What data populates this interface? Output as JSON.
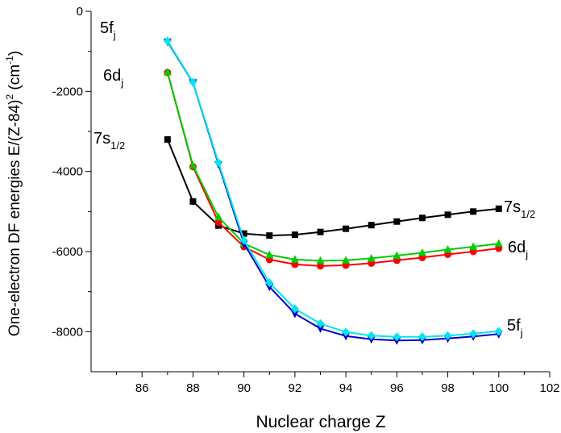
{
  "chart_data": {
    "type": "line",
    "xlabel": "Nuclear charge Z",
    "ylabel": {
      "main": "One-electron DF energies E/(Z-84)",
      "exp2": "2",
      "unit_open": " (cm",
      "unit_exp": "-1",
      "unit_close": ")"
    },
    "xlim": [
      84.0,
      102.0
    ],
    "ylim": [
      -9000,
      0
    ],
    "x_ticks": [
      86,
      88,
      90,
      92,
      94,
      96,
      98,
      100,
      102
    ],
    "y_ticks": [
      0,
      -2000,
      -4000,
      -6000,
      -8000
    ],
    "grid": false,
    "series": [
      {
        "key": "7s",
        "color": "#000000",
        "marker": "square",
        "x": [
          87,
          88,
          89,
          90,
          91,
          92,
          93,
          94,
          95,
          96,
          97,
          98,
          99,
          100
        ],
        "values": [
          -3200,
          -4750,
          -5350,
          -5550,
          -5600,
          -5580,
          -5510,
          -5430,
          -5340,
          -5250,
          -5160,
          -5080,
          -5000,
          -4930
        ]
      },
      {
        "key": "6d-red",
        "color": "#ff0000",
        "marker": "circle",
        "x": [
          87,
          88,
          89,
          90,
          91,
          92,
          93,
          94,
          95,
          96,
          97,
          98,
          99,
          100
        ],
        "values": [
          -1530,
          -3880,
          -5270,
          -5880,
          -6200,
          -6320,
          -6360,
          -6340,
          -6290,
          -6220,
          -6150,
          -6070,
          -6000,
          -5920
        ]
      },
      {
        "key": "6d-green",
        "color": "#00cc00",
        "marker": "triangle-up",
        "x": [
          87,
          88,
          89,
          90,
          91,
          92,
          93,
          94,
          95,
          96,
          97,
          98,
          99,
          100
        ],
        "values": [
          -1520,
          -3850,
          -5140,
          -5800,
          -6080,
          -6200,
          -6230,
          -6220,
          -6170,
          -6100,
          -6030,
          -5950,
          -5880,
          -5800
        ]
      },
      {
        "key": "5f-blue",
        "color": "#0000cc",
        "marker": "triangle-down",
        "x": [
          87,
          88,
          89,
          90,
          91,
          92,
          93,
          94,
          95,
          96,
          97,
          98,
          99,
          100
        ],
        "values": [
          -760,
          -1780,
          -3820,
          -5800,
          -6880,
          -7550,
          -7920,
          -8110,
          -8190,
          -8220,
          -8210,
          -8170,
          -8120,
          -8060
        ]
      },
      {
        "key": "5f-cyan",
        "color": "#00e5ee",
        "marker": "diamond",
        "x": [
          87,
          88,
          89,
          90,
          91,
          92,
          93,
          94,
          95,
          96,
          97,
          98,
          99,
          100
        ],
        "values": [
          -740,
          -1770,
          -3780,
          -5720,
          -6780,
          -7430,
          -7800,
          -8010,
          -8100,
          -8130,
          -8130,
          -8100,
          -8050,
          -7990
        ]
      }
    ],
    "annotations": [
      {
        "key": "label-5f-top",
        "base": "5f",
        "sub": "j"
      },
      {
        "key": "label-6d-left",
        "base": "6d",
        "sub": "j"
      },
      {
        "key": "label-7s-left",
        "base": "7s",
        "sub": "1/2"
      },
      {
        "key": "label-7s-right",
        "base": "7s",
        "sub": "1/2"
      },
      {
        "key": "label-6d-right",
        "base": "6d",
        "sub": "j"
      },
      {
        "key": "label-5f-right",
        "base": "5f",
        "sub": "j"
      }
    ]
  }
}
